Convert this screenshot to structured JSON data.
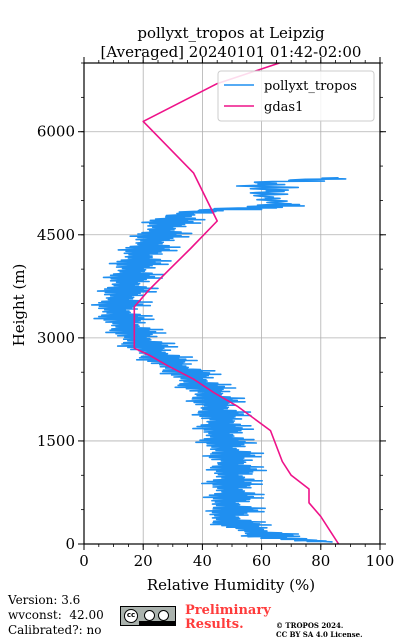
{
  "chart_data": {
    "type": "line",
    "title": "pollyxt_tropos at Leipzig",
    "subtitle": "[Averaged] 20240101 01:42-02:00",
    "xlabel": "Relative Humidity (%)",
    "ylabel": "Height (m)",
    "xlim": [
      0,
      100
    ],
    "ylim": [
      0,
      7000
    ],
    "xticks": [
      "0",
      "20",
      "40",
      "60",
      "80",
      "100"
    ],
    "yticks": [
      "0",
      "1500",
      "3000",
      "4500",
      "6000"
    ],
    "grid": true,
    "legend_position": "top-right",
    "series": [
      {
        "name": "pollyxt_tropos",
        "color": "#1f8ff0",
        "points": [
          [
            80,
            30
          ],
          [
            72,
            60
          ],
          [
            60,
            100
          ],
          [
            62,
            130
          ],
          [
            58,
            170
          ],
          [
            55,
            220
          ],
          [
            52,
            260
          ],
          [
            50,
            300
          ],
          [
            48,
            350
          ],
          [
            47,
            400
          ],
          [
            48,
            450
          ],
          [
            50,
            500
          ],
          [
            48,
            550
          ],
          [
            47,
            600
          ],
          [
            49,
            650
          ],
          [
            48,
            700
          ],
          [
            50,
            750
          ],
          [
            48,
            800
          ],
          [
            49,
            850
          ],
          [
            47,
            900
          ],
          [
            50,
            950
          ],
          [
            48,
            1000
          ],
          [
            50,
            1050
          ],
          [
            49,
            1100
          ],
          [
            48,
            1150
          ],
          [
            50,
            1200
          ],
          [
            47,
            1250
          ],
          [
            49,
            1300
          ],
          [
            48,
            1350
          ],
          [
            46,
            1400
          ],
          [
            47,
            1450
          ],
          [
            45,
            1500
          ],
          [
            46,
            1550
          ],
          [
            45,
            1600
          ],
          [
            46,
            1650
          ],
          [
            44,
            1700
          ],
          [
            45,
            1750
          ],
          [
            46,
            1800
          ],
          [
            44,
            1850
          ],
          [
            45,
            1900
          ],
          [
            43,
            1950
          ],
          [
            44,
            2000
          ],
          [
            42,
            2050
          ],
          [
            43,
            2100
          ],
          [
            41,
            2150
          ],
          [
            42,
            2200
          ],
          [
            40,
            2250
          ],
          [
            38,
            2300
          ],
          [
            37,
            2350
          ],
          [
            36,
            2400
          ],
          [
            35,
            2450
          ],
          [
            33,
            2500
          ],
          [
            31,
            2550
          ],
          [
            29,
            2600
          ],
          [
            27,
            2650
          ],
          [
            25,
            2700
          ],
          [
            24,
            2750
          ],
          [
            22,
            2800
          ],
          [
            20,
            2850
          ],
          [
            19,
            2900
          ],
          [
            18,
            2950
          ],
          [
            17,
            3000
          ],
          [
            16,
            3050
          ],
          [
            15,
            3100
          ],
          [
            14,
            3150
          ],
          [
            13,
            3200
          ],
          [
            12,
            3250
          ],
          [
            11,
            3300
          ],
          [
            11,
            3350
          ],
          [
            10,
            3400
          ],
          [
            10,
            3450
          ],
          [
            11,
            3500
          ],
          [
            11,
            3550
          ],
          [
            12,
            3600
          ],
          [
            12,
            3650
          ],
          [
            13,
            3700
          ],
          [
            13,
            3750
          ],
          [
            14,
            3800
          ],
          [
            14,
            3850
          ],
          [
            15,
            3900
          ],
          [
            15,
            3950
          ],
          [
            16,
            4000
          ],
          [
            16,
            4050
          ],
          [
            17,
            4100
          ],
          [
            18,
            4150
          ],
          [
            18,
            4200
          ],
          [
            19,
            4250
          ],
          [
            20,
            4300
          ],
          [
            21,
            4350
          ],
          [
            22,
            4400
          ],
          [
            23,
            4450
          ],
          [
            24,
            4500
          ],
          [
            25,
            4550
          ],
          [
            26,
            4600
          ],
          [
            27,
            4650
          ],
          [
            28,
            4700
          ],
          [
            30,
            4750
          ],
          [
            33,
            4800
          ],
          [
            40,
            4850
          ],
          [
            60,
            4900
          ],
          [
            66,
            4950
          ],
          [
            60,
            5050
          ],
          [
            62,
            5150
          ],
          [
            58,
            5250
          ],
          [
            86,
            5330
          ]
        ],
        "jitter": [
          [
            2,
            4
          ],
          [
            3,
            6
          ],
          [
            2,
            5
          ],
          [
            4,
            7
          ],
          [
            3,
            5
          ],
          [
            2,
            4
          ],
          [
            3,
            6
          ],
          [
            4,
            8
          ],
          [
            5,
            10
          ],
          [
            3,
            6
          ],
          [
            4,
            7
          ],
          [
            5,
            9
          ],
          [
            6,
            12
          ],
          [
            8,
            15
          ],
          [
            5,
            9
          ],
          [
            4,
            7
          ],
          [
            6,
            10
          ],
          [
            7,
            12
          ],
          [
            5,
            9
          ],
          [
            4,
            8
          ]
        ]
      },
      {
        "name": "gdas1",
        "color": "#ee1289",
        "points": [
          [
            86,
            0
          ],
          [
            83,
            200
          ],
          [
            80,
            400
          ],
          [
            76,
            600
          ],
          [
            76,
            800
          ],
          [
            70,
            1000
          ],
          [
            67,
            1200
          ],
          [
            63,
            1650
          ],
          [
            52,
            2000
          ],
          [
            44,
            2200
          ],
          [
            37,
            2400
          ],
          [
            28,
            2600
          ],
          [
            22,
            2750
          ],
          [
            17,
            2850
          ],
          [
            17,
            3000
          ],
          [
            17,
            3200
          ],
          [
            17,
            3450
          ],
          [
            22,
            3700
          ],
          [
            29,
            4000
          ],
          [
            36,
            4300
          ],
          [
            45,
            4700
          ],
          [
            37,
            5400
          ],
          [
            20,
            6150
          ],
          [
            45,
            6700
          ],
          [
            66,
            7000
          ]
        ]
      }
    ]
  },
  "footer": {
    "version": "Version: 3.6",
    "wvconst": "wvconst:  42.00",
    "calibrated": "Calibrated?: no",
    "preliminary_line1": "Preliminary",
    "preliminary_line2": "Results.",
    "license_line1": "© TROPOS 2024.",
    "license_line2": "CC BY SA 4.0 License."
  },
  "badge": {
    "cc": "cc"
  }
}
